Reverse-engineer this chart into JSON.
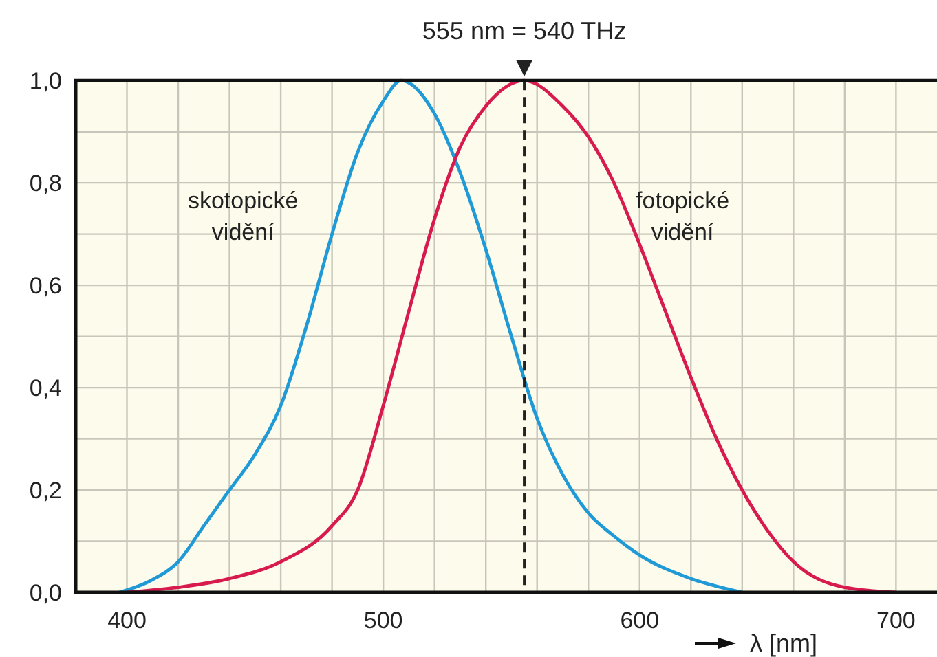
{
  "chart_data": {
    "type": "line",
    "xlabel": "λ [nm]",
    "xlim": [
      380,
      716
    ],
    "ylim": [
      0,
      1
    ],
    "xticks": [
      400,
      {
        "value": 420,
        "label": null
      },
      {
        "value": 440,
        "label": null
      },
      {
        "value": 460,
        "label": null
      },
      {
        "value": 480,
        "label": null
      },
      500,
      {
        "value": 520,
        "label": null
      },
      {
        "value": 540,
        "label": null
      },
      {
        "value": 560,
        "label": null
      },
      {
        "value": 580,
        "label": null
      },
      600,
      {
        "value": 620,
        "label": null
      },
      {
        "value": 640,
        "label": null
      },
      {
        "value": 660,
        "label": null
      },
      {
        "value": 680,
        "label": null
      },
      700
    ],
    "yticks": [
      {
        "value": 0,
        "label": "0,0"
      },
      {
        "value": 0.1,
        "label": null
      },
      {
        "value": 0.2,
        "label": "0,2"
      },
      {
        "value": 0.3,
        "label": null
      },
      {
        "value": 0.4,
        "label": "0,4"
      },
      {
        "value": 0.5,
        "label": null
      },
      {
        "value": 0.6,
        "label": "0,6"
      },
      {
        "value": 0.7,
        "label": null
      },
      {
        "value": 0.8,
        "label": "0,8"
      },
      {
        "value": 0.9,
        "label": null
      },
      {
        "value": 1,
        "label": "1,0"
      }
    ],
    "grid": true,
    "marker": "none",
    "line_style": "solid",
    "ref_lines": [
      {
        "axis": "x",
        "value": 555,
        "label": "555 nm = 540 THz",
        "color": "#222222",
        "line_style": "dashed"
      }
    ],
    "series": [
      {
        "name": "skotopické vidění",
        "color": "#1f9ad6",
        "x": [
          397,
          410,
          420,
          430,
          440,
          450,
          460,
          470,
          480,
          490,
          500,
          507,
          520,
          530,
          540,
          550,
          560,
          570,
          580,
          590,
          600,
          620,
          640
        ],
        "values": [
          0,
          0.025,
          0.06,
          0.13,
          0.2,
          0.27,
          0.365,
          0.52,
          0.7,
          0.86,
          0.96,
          1,
          0.935,
          0.82,
          0.67,
          0.5,
          0.34,
          0.23,
          0.155,
          0.11,
          0.073,
          0.027,
          0
        ]
      },
      {
        "name": "fotopické vidění",
        "color": "#d81b4f",
        "x": [
          400,
          420,
          440,
          460,
          480,
          490,
          500,
          510,
          520,
          530,
          540,
          555,
          570,
          580,
          590,
          600,
          610,
          620,
          630,
          640,
          650,
          660,
          680,
          700
        ],
        "values": [
          0,
          0.01,
          0.027,
          0.06,
          0.13,
          0.2,
          0.365,
          0.55,
          0.73,
          0.87,
          0.95,
          1,
          0.95,
          0.89,
          0.8,
          0.68,
          0.55,
          0.42,
          0.3,
          0.2,
          0.12,
          0.06,
          0.01,
          0
        ]
      }
    ]
  }
}
